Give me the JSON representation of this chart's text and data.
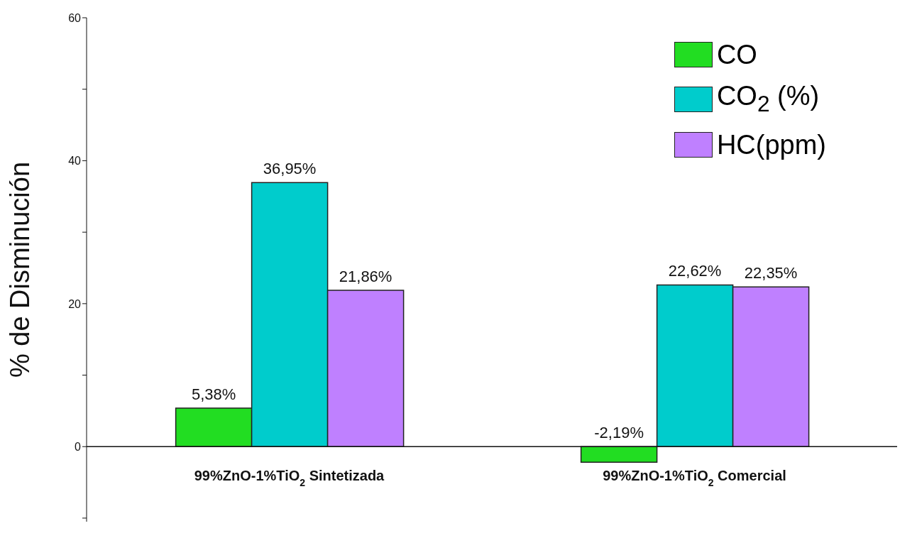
{
  "chart_data": {
    "type": "bar",
    "ylabel": "% de Disminución",
    "categories": [
      "99%ZnO-1%TiO$_{2}$ Sintetizada",
      "99%ZnO-1%TiO$_{2}$ Comercial"
    ],
    "series": [
      {
        "name": "CO",
        "color": "#22dd22",
        "values": [
          5.38,
          -2.19
        ],
        "value_labels": [
          "5,38%",
          "-2,19%"
        ]
      },
      {
        "name": "CO$_{2}$ (%)",
        "color": "#00cccc",
        "values": [
          36.95,
          22.62
        ],
        "value_labels": [
          "36,95%",
          "22,62%"
        ]
      },
      {
        "name": "HC(ppm)",
        "color": "#bf80ff",
        "values": [
          21.86,
          22.35
        ],
        "value_labels": [
          "21,86%",
          "22,35%"
        ]
      }
    ],
    "ylim": [
      -10.5,
      60
    ],
    "yticks": [
      {
        "value": -10,
        "label": null
      },
      0,
      {
        "value": 10,
        "label": null
      },
      20,
      {
        "value": 30,
        "label": null
      },
      40,
      {
        "value": 50,
        "label": null
      },
      60
    ],
    "grid": false,
    "legend": "top right"
  }
}
